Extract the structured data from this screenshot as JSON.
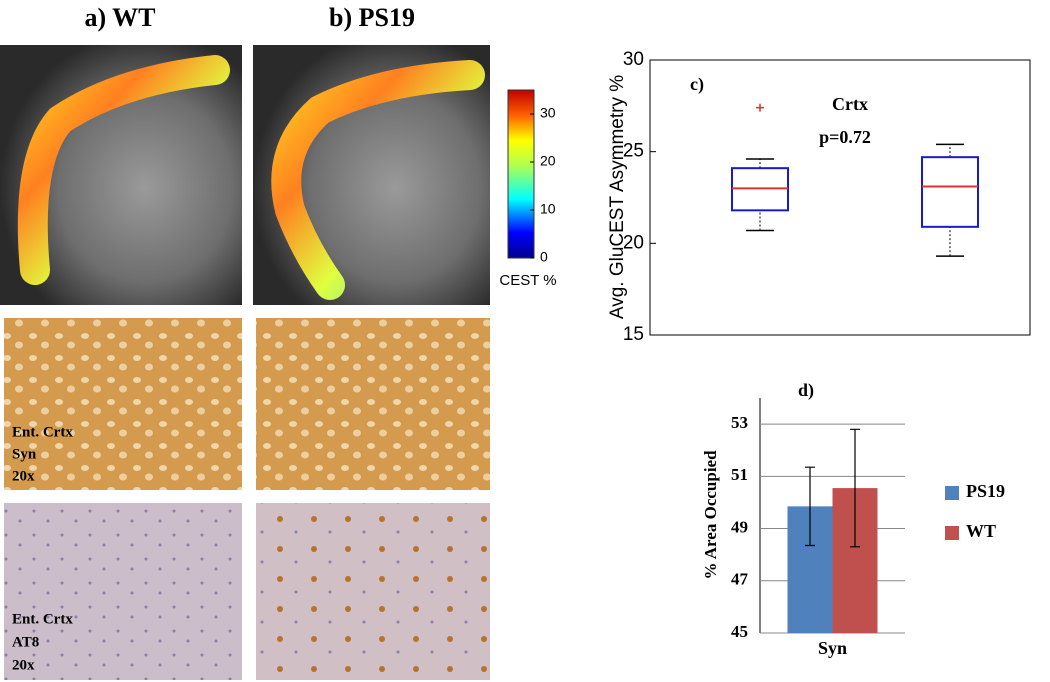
{
  "panels": {
    "a": "a) WT",
    "b": "b) PS19"
  },
  "colorbar": {
    "lim": [
      0,
      35
    ],
    "ticks": [
      0,
      10,
      20,
      30
    ],
    "label": "CEST %"
  },
  "histology": {
    "syn": [
      "Ent. Crtx",
      "Syn",
      "20x"
    ],
    "at8": [
      "Ent. Crtx",
      "AT8",
      "20x"
    ]
  },
  "chart_data": [
    {
      "type": "box",
      "label": "c)",
      "ylabel": "Avg. GluCEST Asymmetry %",
      "annotation": [
        "Crtx",
        "p=0.72"
      ],
      "ylim": [
        15,
        30
      ],
      "yticks": [
        15,
        20,
        25,
        30
      ],
      "series": [
        {
          "color": "#1a1acc",
          "median_color": "#e03030",
          "whisker_low": 20.7,
          "q1": 21.8,
          "median": 23.0,
          "q3": 24.1,
          "whisker_high": 24.6,
          "outliers": [
            27.4
          ]
        },
        {
          "color": "#1a1acc",
          "median_color": "#e03030",
          "whisker_low": 19.3,
          "q1": 20.9,
          "median": 23.1,
          "q3": 24.7,
          "whisker_high": 25.4,
          "outliers": []
        }
      ]
    },
    {
      "type": "bar",
      "label": "d)",
      "ylabel": "% Area Occupied",
      "categories": [
        "Syn"
      ],
      "ylim": [
        45,
        54
      ],
      "yticks": [
        45,
        47,
        49,
        51,
        53
      ],
      "grid": true,
      "legend": "right",
      "series": [
        {
          "name": "PS19",
          "color": "#4f81bd",
          "values": [
            49.85
          ],
          "errors": [
            1.5
          ]
        },
        {
          "name": "WT",
          "color": "#c0504d",
          "values": [
            50.55
          ],
          "errors": [
            2.25
          ]
        }
      ]
    }
  ]
}
